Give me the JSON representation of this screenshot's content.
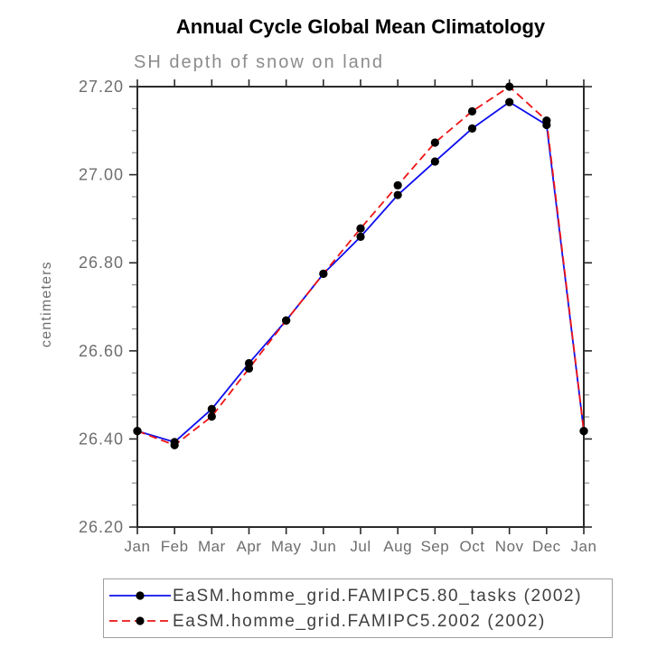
{
  "page": {
    "background": "#ffffff"
  },
  "chart_data": {
    "type": "line",
    "title": "Annual Cycle Global Mean Climatology",
    "subtitle": "SH depth of snow on land",
    "xlabel": "",
    "ylabel": "centimeters",
    "categories": [
      "Jan",
      "Feb",
      "Mar",
      "Apr",
      "May",
      "Jun",
      "Jul",
      "Aug",
      "Sep",
      "Oct",
      "Nov",
      "Dec",
      "Jan"
    ],
    "ylim": [
      26.2,
      27.2
    ],
    "ytick_labels": [
      "26.20",
      "26.40",
      "26.60",
      "26.80",
      "27.00",
      "27.20"
    ],
    "ytick_major_step": 0.2,
    "ytick_minor_step": 0.05,
    "grid": false,
    "legend_position": "bottom",
    "series": [
      {
        "name": "EaSM.homme_grid.FAMIPC5.80_tasks (2002)",
        "color": "#0f0fee",
        "style": "solid",
        "marker": "black-dot",
        "values": [
          26.418,
          26.393,
          26.468,
          26.572,
          26.669,
          26.775,
          26.859,
          26.954,
          27.03,
          27.105,
          27.165,
          27.113,
          26.418
        ]
      },
      {
        "name": "EaSM.homme_grid.FAMIPC5.2002 (2002)",
        "color": "#ee1515",
        "style": "dashed",
        "marker": "black-dot",
        "values": [
          26.418,
          26.386,
          26.451,
          26.56,
          26.669,
          26.775,
          26.878,
          26.976,
          27.073,
          27.144,
          27.2,
          27.123,
          26.418
        ]
      }
    ],
    "colors": {
      "title": "#000000",
      "subtitle": "#8c8c8c",
      "axis": "#2a2a2a",
      "tick_label": "#6e6e6e",
      "minor_tick": "#8a8a8a",
      "marker": "#000000",
      "legend_text": "#3f3f3f",
      "legend_border": "#a0a0a0"
    }
  }
}
